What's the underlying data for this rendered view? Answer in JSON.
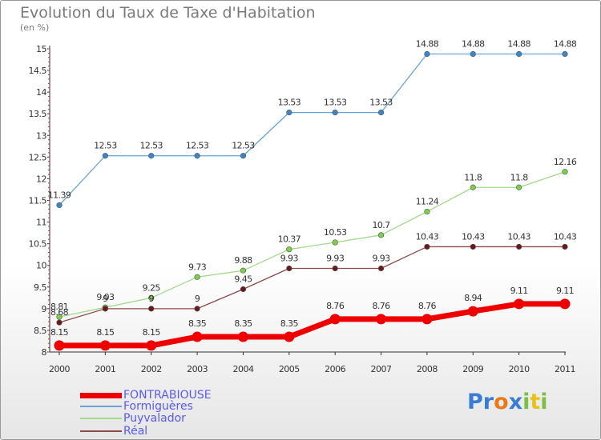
{
  "title": "Evolution du Taux de Taxe d'Habitation",
  "unit": "(en %)",
  "logo": {
    "letters": [
      "P",
      "r",
      "o",
      "x",
      "i",
      "t",
      "i"
    ],
    "colors": [
      "#3a7bd5",
      "#3a7bd5",
      "#e87a1a",
      "#3a7bd5",
      "#7ac043",
      "#e8c21a",
      "#7ac043"
    ]
  },
  "chart_data": {
    "type": "line",
    "x": [
      "2000",
      "2001",
      "2002",
      "2003",
      "2004",
      "2005",
      "2006",
      "2007",
      "2008",
      "2009",
      "2010",
      "2011"
    ],
    "ylim": [
      8,
      15
    ],
    "yticks": [
      "8",
      "8.5",
      "9",
      "9.5",
      "10",
      "10.5",
      "11",
      "11.5",
      "12",
      "12.5",
      "13",
      "13.5",
      "14",
      "14.5",
      "15"
    ],
    "grid": false,
    "legend_position": "bottom-left",
    "series": [
      {
        "name": "FONTRABIOUSE",
        "color": "#ee0000",
        "marker": "#ee0000",
        "values": [
          8.15,
          8.15,
          8.15,
          8.35,
          8.35,
          8.35,
          8.76,
          8.76,
          8.76,
          8.94,
          9.11,
          9.11
        ],
        "labels": [
          "8.15",
          "8.15",
          "8.15",
          "8.35",
          "8.35",
          "8.35",
          "8.76",
          "8.76",
          "8.76",
          "8.94",
          "9.11",
          "9.11"
        ]
      },
      {
        "name": "Formiguères",
        "color": "#6aa3d6",
        "marker": "#3c86c8",
        "values": [
          11.39,
          12.53,
          12.53,
          12.53,
          12.53,
          13.53,
          13.53,
          13.53,
          14.88,
          14.88,
          14.88,
          14.88
        ],
        "labels": [
          "11.39",
          "12.53",
          "12.53",
          "12.53",
          "12.53",
          "13.53",
          "13.53",
          "13.53",
          "14.88",
          "14.88",
          "14.88",
          "14.88"
        ]
      },
      {
        "name": "Puyvalador",
        "color": "#a3d98a",
        "marker": "#7ccf49",
        "values": [
          8.81,
          9.03,
          9.25,
          9.73,
          9.88,
          10.37,
          10.53,
          10.7,
          11.24,
          11.8,
          11.8,
          12.16
        ],
        "labels": [
          "8.81",
          "9.03",
          "9.25",
          "9.73",
          "9.88",
          "10.37",
          "10.53",
          "10.7",
          "11.24",
          "11.8",
          "11.8",
          "12.16"
        ]
      },
      {
        "name": "Réal",
        "color": "#8c4a4a",
        "marker": "#6a1a1a",
        "values": [
          8.68,
          9,
          9,
          9,
          9.45,
          9.93,
          9.93,
          9.93,
          10.43,
          10.43,
          10.43,
          10.43
        ],
        "labels": [
          "8.68",
          "9",
          "9",
          "9",
          "9.45",
          "9.93",
          "9.93",
          "9.93",
          "10.43",
          "10.43",
          "10.43",
          "10.43"
        ]
      }
    ]
  }
}
